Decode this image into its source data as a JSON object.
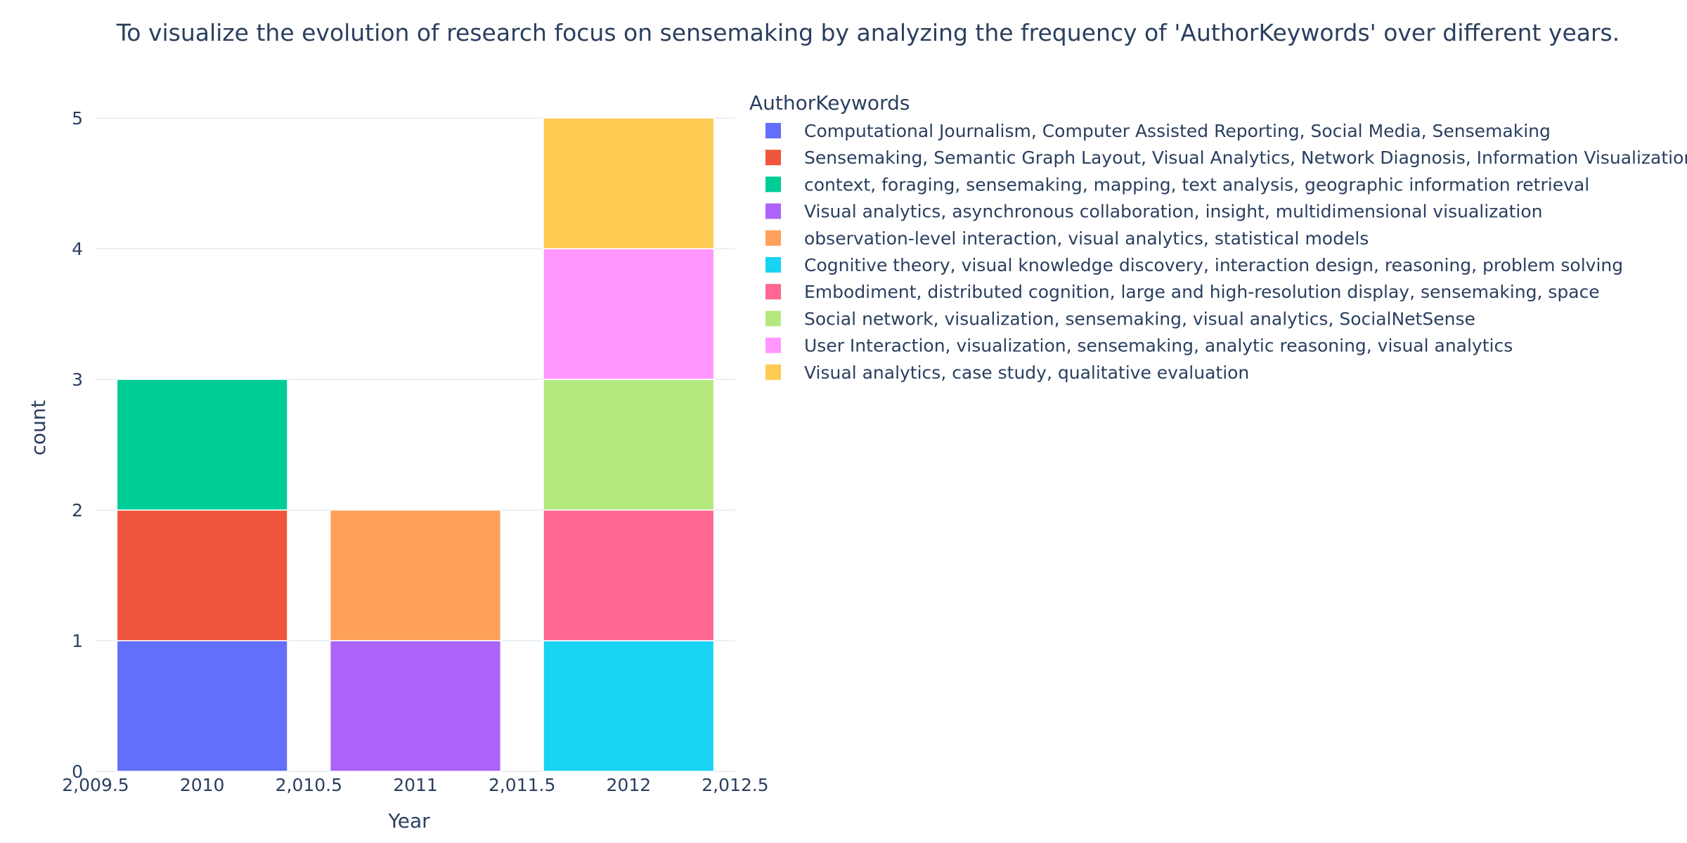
{
  "chart_data": {
    "type": "bar",
    "barmode": "stack",
    "title": "To visualize the evolution of research focus on sensemaking by analyzing the frequency of 'AuthorKeywords' over different years.",
    "xlabel": "Year",
    "ylabel": "count",
    "xlim": [
      2009.5,
      2012.5
    ],
    "ylim": [
      0,
      5
    ],
    "x_tick_values": [
      2009.5,
      2010,
      2010.5,
      2011,
      2011.5,
      2012,
      2012.5
    ],
    "x_tick_labels": [
      "2,009.5",
      "2010",
      "2,010.5",
      "2011",
      "2,011.5",
      "2012",
      "2,012.5"
    ],
    "y_tick_values": [
      0,
      1,
      2,
      3,
      4,
      5
    ],
    "y_tick_labels": [
      "0",
      "1",
      "2",
      "3",
      "4",
      "5"
    ],
    "grid": true,
    "legend": {
      "title": "AuthorKeywords",
      "placement": "right"
    },
    "series": [
      {
        "name": "Computational Journalism, Computer Assisted Reporting, Social Media, Sensemaking",
        "color": "#636efa",
        "x": 2010,
        "value": 1
      },
      {
        "name": "Sensemaking, Semantic Graph Layout, Visual Analytics, Network Diagnosis, Information Visualization",
        "color": "#ef553b",
        "x": 2010,
        "value": 1
      },
      {
        "name": "context, foraging, sensemaking, mapping, text analysis, geographic information retrieval",
        "color": "#00cc96",
        "x": 2010,
        "value": 1
      },
      {
        "name": "Visual analytics, asynchronous collaboration, insight, multidimensional visualization",
        "color": "#ab63fa",
        "x": 2011,
        "value": 1
      },
      {
        "name": "observation-level interaction, visual analytics, statistical models",
        "color": "#ffa15a",
        "x": 2011,
        "value": 1
      },
      {
        "name": "Cognitive theory, visual knowledge discovery, interaction design, reasoning, problem solving",
        "color": "#19d3f3",
        "x": 2012,
        "value": 1
      },
      {
        "name": "Embodiment, distributed cognition, large and high-resolution display, sensemaking, space",
        "color": "#ff6692",
        "x": 2012,
        "value": 1
      },
      {
        "name": "Social network, visualization, sensemaking, visual analytics, SocialNetSense",
        "color": "#b6e880",
        "x": 2012,
        "value": 1
      },
      {
        "name": "User Interaction, visualization, sensemaking, analytic reasoning, visual analytics",
        "color": "#ff97ff",
        "x": 2012,
        "value": 1
      },
      {
        "name": "Visual analytics, case study, qualitative evaluation",
        "color": "#fecb52",
        "x": 2012,
        "value": 1
      }
    ]
  }
}
